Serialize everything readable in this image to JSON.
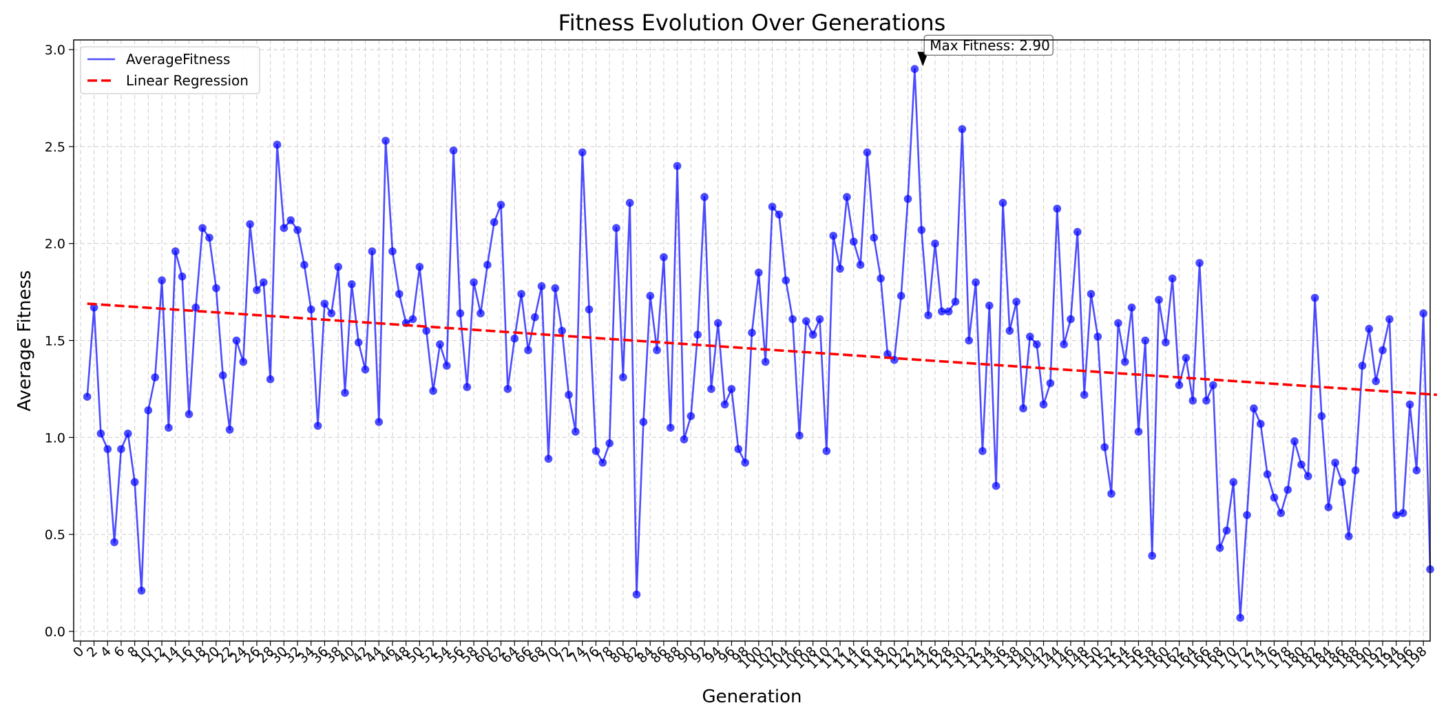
{
  "chart_data": {
    "type": "line",
    "title": "Fitness Evolution Over Generations",
    "xlabel": "Generation",
    "ylabel": "Average Fitness",
    "xlim": [
      -1,
      199
    ],
    "ylim": [
      -0.05,
      3.05
    ],
    "x_ticks": [
      0,
      2,
      4,
      6,
      8,
      10,
      12,
      14,
      16,
      18,
      20,
      22,
      24,
      26,
      28,
      30,
      32,
      34,
      36,
      38,
      40,
      42,
      44,
      46,
      48,
      50,
      52,
      54,
      56,
      58,
      60,
      62,
      64,
      66,
      68,
      70,
      72,
      74,
      76,
      78,
      80,
      82,
      84,
      86,
      88,
      90,
      92,
      94,
      96,
      98,
      100,
      102,
      104,
      106,
      108,
      110,
      112,
      114,
      116,
      118,
      120,
      122,
      124,
      126,
      128,
      130,
      132,
      134,
      136,
      138,
      140,
      142,
      144,
      146,
      148,
      150,
      152,
      154,
      156,
      158,
      160,
      162,
      164,
      166,
      168,
      170,
      172,
      174,
      176,
      178,
      180,
      182,
      184,
      186,
      188,
      190,
      192,
      194,
      196,
      198
    ],
    "y_ticks": [
      0.0,
      0.5,
      1.0,
      1.5,
      2.0,
      2.5,
      3.0
    ],
    "y_tick_labels": [
      "0.0",
      "0.5",
      "1.0",
      "1.5",
      "2.0",
      "2.5",
      "3.0"
    ],
    "grid": true,
    "legend_position": "top-left",
    "series": [
      {
        "name": "AverageFitness",
        "color": "#0000ff",
        "x_start": 1,
        "values": [
          1.21,
          1.67,
          1.02,
          0.94,
          0.46,
          0.94,
          1.02,
          0.77,
          0.21,
          1.14,
          1.31,
          1.81,
          1.05,
          1.96,
          1.83,
          1.12,
          1.67,
          2.08,
          2.03,
          1.77,
          1.32,
          1.04,
          1.5,
          1.39,
          2.1,
          1.76,
          1.8,
          1.3,
          2.51,
          2.08,
          2.12,
          2.07,
          1.89,
          1.66,
          1.06,
          1.69,
          1.64,
          1.88,
          1.23,
          1.79,
          1.49,
          1.35,
          1.96,
          1.08,
          2.53,
          1.96,
          1.74,
          1.59,
          1.61,
          1.88,
          1.55,
          1.24,
          1.48,
          1.37,
          2.48,
          1.64,
          1.26,
          1.8,
          1.64,
          1.89,
          2.11,
          2.2,
          1.25,
          1.51,
          1.74,
          1.45,
          1.62,
          1.78,
          0.89,
          1.77,
          1.55,
          1.22,
          1.03,
          2.47,
          1.66,
          0.93,
          0.87,
          0.97,
          2.08,
          1.31,
          2.21,
          0.19,
          1.08,
          1.73,
          1.45,
          1.93,
          1.05,
          2.4,
          0.99,
          1.11,
          1.53,
          2.24,
          1.25,
          1.59,
          1.17,
          1.25,
          0.94,
          0.87,
          1.54,
          1.85,
          1.39,
          2.19,
          2.15,
          1.81,
          1.61,
          1.01,
          1.6,
          1.53,
          1.61,
          0.93,
          2.04,
          1.87,
          2.24,
          2.01,
          1.89,
          2.47,
          2.03,
          1.82,
          1.43,
          1.4,
          1.73,
          2.23,
          2.9,
          2.07,
          1.63,
          2.0,
          1.65,
          1.65,
          1.7,
          2.59,
          1.5,
          1.8,
          0.93,
          1.68,
          0.75,
          2.21,
          1.55,
          1.7,
          1.15,
          1.52,
          1.48,
          1.17,
          1.28,
          2.18,
          1.48,
          1.61,
          2.06,
          1.22,
          1.74,
          1.52,
          0.95,
          0.71,
          1.59,
          1.39,
          1.67,
          1.03,
          1.5,
          0.39,
          1.71,
          1.49,
          1.82,
          1.27,
          1.41,
          1.19,
          1.9,
          1.19,
          1.27,
          0.43,
          0.52,
          0.77,
          0.07,
          0.6,
          1.15,
          1.07,
          0.81,
          0.69,
          0.61,
          0.73,
          0.98,
          0.86,
          0.8,
          1.72,
          1.11,
          0.64,
          0.87,
          0.77,
          0.49,
          0.83,
          1.37,
          1.56,
          1.29,
          1.45,
          1.61,
          0.6,
          0.61,
          1.17,
          0.83,
          1.64,
          0.32
        ]
      },
      {
        "name": "Linear Regression",
        "color": "#ff0000",
        "linestyle": "dashed",
        "x": [
          1,
          200
        ],
        "y": [
          1.69,
          1.22
        ]
      }
    ],
    "annotation": {
      "text": "Max Fitness: 2.90",
      "x": 124,
      "y": 2.9
    }
  }
}
